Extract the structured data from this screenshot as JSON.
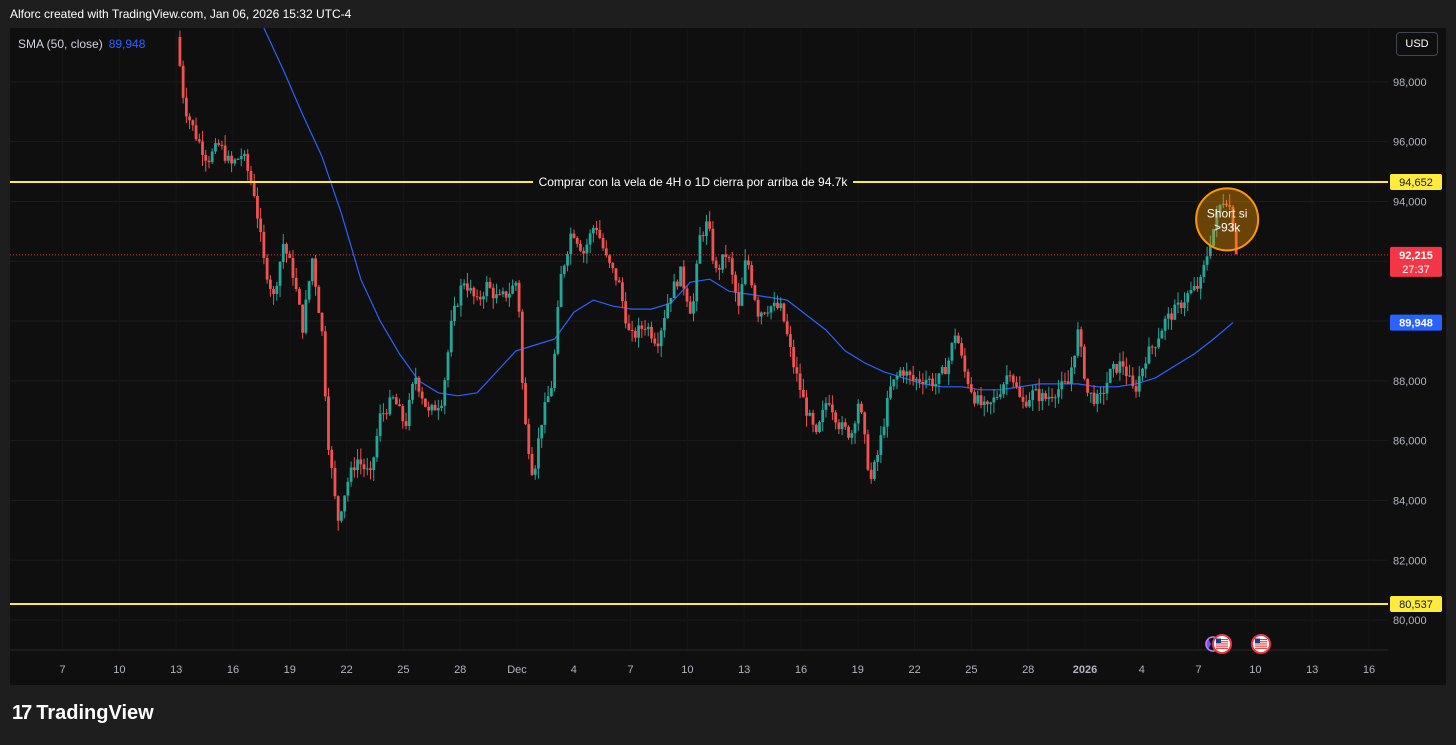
{
  "header": {
    "attribution": "Alforc created with TradingView.com, Jan 06, 2026 15:32 UTC-4"
  },
  "indicator": {
    "label": "SMA (50, close)",
    "value": "89,948"
  },
  "currency": "USD",
  "footer": {
    "brand": "TradingView"
  },
  "colors": {
    "up": "#26a69a",
    "down": "#ef5350",
    "sma": "#2962ff",
    "level": "#ffeb3b",
    "price_line": "#f23645"
  },
  "chart_data": {
    "type": "candlestick",
    "y_axis": {
      "min": 79000,
      "max": 99800,
      "ticks": [
        "80,000",
        "82,000",
        "84,000",
        "86,000",
        "88,000",
        "90,000",
        "92,000",
        "94,000",
        "96,000",
        "98,000"
      ]
    },
    "x_axis": {
      "ticks": [
        "7",
        "10",
        "13",
        "16",
        "19",
        "22",
        "25",
        "28",
        "Dec",
        "4",
        "7",
        "10",
        "13",
        "16",
        "19",
        "22",
        "25",
        "28",
        "2026",
        "4",
        "7",
        "10",
        "13",
        "16"
      ]
    },
    "levels": [
      {
        "value": 94652,
        "label": "94,652",
        "annotation": "Comprar con la vela de 4H o 1D cierra por arriba de 94.7k"
      },
      {
        "value": 80537,
        "label": "80,537",
        "annotation": ""
      }
    ],
    "current_price": {
      "value": 92215,
      "label": "92,215",
      "countdown": "27:37"
    },
    "sma_badge": {
      "value": 89948,
      "label": "89,948"
    },
    "callout": {
      "text_line1": "Short si",
      "text_line2": ">93k",
      "value": 93400
    },
    "price_path": [
      {
        "d": 13.0,
        "p": 99500
      },
      {
        "d": 13.4,
        "p": 97200
      },
      {
        "d": 14.0,
        "p": 96200
      },
      {
        "d": 14.6,
        "p": 95400
      },
      {
        "d": 15.2,
        "p": 95900
      },
      {
        "d": 15.8,
        "p": 95200
      },
      {
        "d": 16.4,
        "p": 95600
      },
      {
        "d": 17.0,
        "p": 94300
      },
      {
        "d": 17.5,
        "p": 92000
      },
      {
        "d": 18.0,
        "p": 90800
      },
      {
        "d": 18.5,
        "p": 92600
      },
      {
        "d": 19.0,
        "p": 91600
      },
      {
        "d": 19.5,
        "p": 89800
      },
      {
        "d": 20.0,
        "p": 92100
      },
      {
        "d": 20.5,
        "p": 89600
      },
      {
        "d": 20.8,
        "p": 86100
      },
      {
        "d": 21.3,
        "p": 83300
      },
      {
        "d": 21.8,
        "p": 84600
      },
      {
        "d": 22.3,
        "p": 85400
      },
      {
        "d": 23.0,
        "p": 84800
      },
      {
        "d": 23.5,
        "p": 86800
      },
      {
        "d": 24.2,
        "p": 87400
      },
      {
        "d": 24.8,
        "p": 86500
      },
      {
        "d": 25.3,
        "p": 88200
      },
      {
        "d": 26.0,
        "p": 86900
      },
      {
        "d": 26.7,
        "p": 87400
      },
      {
        "d": 27.2,
        "p": 90000
      },
      {
        "d": 27.8,
        "p": 91400
      },
      {
        "d": 28.5,
        "p": 90600
      },
      {
        "d": 29.0,
        "p": 91200
      },
      {
        "d": 29.6,
        "p": 90700
      },
      {
        "d": 30.2,
        "p": 91000
      },
      {
        "d": 30.6,
        "p": 91400
      },
      {
        "d": 30.9,
        "p": 86900
      },
      {
        "d": 31.4,
        "p": 84800
      },
      {
        "d": 31.8,
        "p": 86600
      },
      {
        "d": 32.4,
        "p": 88000
      },
      {
        "d": 32.8,
        "p": 91400
      },
      {
        "d": 33.4,
        "p": 93100
      },
      {
        "d": 34.0,
        "p": 92300
      },
      {
        "d": 34.6,
        "p": 93300
      },
      {
        "d": 35.2,
        "p": 92000
      },
      {
        "d": 35.8,
        "p": 91300
      },
      {
        "d": 36.4,
        "p": 89400
      },
      {
        "d": 37.2,
        "p": 89900
      },
      {
        "d": 37.8,
        "p": 89300
      },
      {
        "d": 38.4,
        "p": 90800
      },
      {
        "d": 39.0,
        "p": 91600
      },
      {
        "d": 39.6,
        "p": 90200
      },
      {
        "d": 40.0,
        "p": 92800
      },
      {
        "d": 40.4,
        "p": 93300
      },
      {
        "d": 40.8,
        "p": 91600
      },
      {
        "d": 41.4,
        "p": 92300
      },
      {
        "d": 42.0,
        "p": 90400
      },
      {
        "d": 42.4,
        "p": 92200
      },
      {
        "d": 43.0,
        "p": 90300
      },
      {
        "d": 43.6,
        "p": 90500
      },
      {
        "d": 44.2,
        "p": 90400
      },
      {
        "d": 44.8,
        "p": 88600
      },
      {
        "d": 45.4,
        "p": 87200
      },
      {
        "d": 46.0,
        "p": 86100
      },
      {
        "d": 46.6,
        "p": 87500
      },
      {
        "d": 47.2,
        "p": 86500
      },
      {
        "d": 47.8,
        "p": 86200
      },
      {
        "d": 48.2,
        "p": 87400
      },
      {
        "d": 48.8,
        "p": 84600
      },
      {
        "d": 49.2,
        "p": 85600
      },
      {
        "d": 49.8,
        "p": 87700
      },
      {
        "d": 50.4,
        "p": 88400
      },
      {
        "d": 51.0,
        "p": 88000
      },
      {
        "d": 51.6,
        "p": 88100
      },
      {
        "d": 52.2,
        "p": 87900
      },
      {
        "d": 52.8,
        "p": 88600
      },
      {
        "d": 53.2,
        "p": 89700
      },
      {
        "d": 53.6,
        "p": 88400
      },
      {
        "d": 54.2,
        "p": 87400
      },
      {
        "d": 54.8,
        "p": 87000
      },
      {
        "d": 55.4,
        "p": 87600
      },
      {
        "d": 56.0,
        "p": 88400
      },
      {
        "d": 56.6,
        "p": 87200
      },
      {
        "d": 57.2,
        "p": 87600
      },
      {
        "d": 57.8,
        "p": 87400
      },
      {
        "d": 58.4,
        "p": 87700
      },
      {
        "d": 59.0,
        "p": 87900
      },
      {
        "d": 59.5,
        "p": 89600
      },
      {
        "d": 60.0,
        "p": 87600
      },
      {
        "d": 60.6,
        "p": 87300
      },
      {
        "d": 61.2,
        "p": 88300
      },
      {
        "d": 61.8,
        "p": 88600
      },
      {
        "d": 62.4,
        "p": 87600
      },
      {
        "d": 63.0,
        "p": 88800
      },
      {
        "d": 63.5,
        "p": 89300
      },
      {
        "d": 64.0,
        "p": 90000
      },
      {
        "d": 64.6,
        "p": 90400
      },
      {
        "d": 65.2,
        "p": 90900
      },
      {
        "d": 65.8,
        "p": 91200
      },
      {
        "d": 66.3,
        "p": 92600
      },
      {
        "d": 66.8,
        "p": 93800
      },
      {
        "d": 67.1,
        "p": 94200
      },
      {
        "d": 67.4,
        "p": 93700
      },
      {
        "d": 67.7,
        "p": 92215
      }
    ],
    "sma_path": [
      {
        "d": 17.5,
        "p": 99800
      },
      {
        "d": 18.5,
        "p": 98400
      },
      {
        "d": 19.5,
        "p": 96900
      },
      {
        "d": 20.5,
        "p": 95500
      },
      {
        "d": 21.5,
        "p": 93600
      },
      {
        "d": 22.5,
        "p": 91400
      },
      {
        "d": 23.5,
        "p": 90000
      },
      {
        "d": 24.5,
        "p": 88900
      },
      {
        "d": 25.5,
        "p": 88000
      },
      {
        "d": 26.5,
        "p": 87600
      },
      {
        "d": 27.5,
        "p": 87500
      },
      {
        "d": 28.5,
        "p": 87600
      },
      {
        "d": 29.5,
        "p": 88300
      },
      {
        "d": 30.5,
        "p": 89000
      },
      {
        "d": 31.5,
        "p": 89200
      },
      {
        "d": 32.5,
        "p": 89400
      },
      {
        "d": 33.5,
        "p": 90300
      },
      {
        "d": 34.5,
        "p": 90700
      },
      {
        "d": 35.5,
        "p": 90500
      },
      {
        "d": 36.5,
        "p": 90400
      },
      {
        "d": 37.5,
        "p": 90400
      },
      {
        "d": 38.5,
        "p": 90600
      },
      {
        "d": 39.5,
        "p": 91300
      },
      {
        "d": 40.5,
        "p": 91400
      },
      {
        "d": 41.5,
        "p": 91000
      },
      {
        "d": 42.5,
        "p": 90900
      },
      {
        "d": 43.5,
        "p": 90800
      },
      {
        "d": 44.5,
        "p": 90700
      },
      {
        "d": 45.5,
        "p": 90200
      },
      {
        "d": 46.5,
        "p": 89700
      },
      {
        "d": 47.5,
        "p": 89000
      },
      {
        "d": 48.5,
        "p": 88600
      },
      {
        "d": 49.5,
        "p": 88300
      },
      {
        "d": 50.5,
        "p": 88100
      },
      {
        "d": 51.5,
        "p": 87900
      },
      {
        "d": 52.5,
        "p": 87800
      },
      {
        "d": 53.5,
        "p": 87800
      },
      {
        "d": 54.5,
        "p": 87700
      },
      {
        "d": 55.5,
        "p": 87700
      },
      {
        "d": 56.5,
        "p": 87800
      },
      {
        "d": 57.5,
        "p": 87900
      },
      {
        "d": 58.5,
        "p": 87900
      },
      {
        "d": 59.5,
        "p": 87900
      },
      {
        "d": 60.5,
        "p": 87800
      },
      {
        "d": 61.5,
        "p": 87800
      },
      {
        "d": 62.5,
        "p": 87900
      },
      {
        "d": 63.5,
        "p": 88100
      },
      {
        "d": 64.5,
        "p": 88500
      },
      {
        "d": 65.5,
        "p": 88900
      },
      {
        "d": 66.5,
        "p": 89400
      },
      {
        "d": 67.5,
        "p": 89948
      }
    ]
  }
}
